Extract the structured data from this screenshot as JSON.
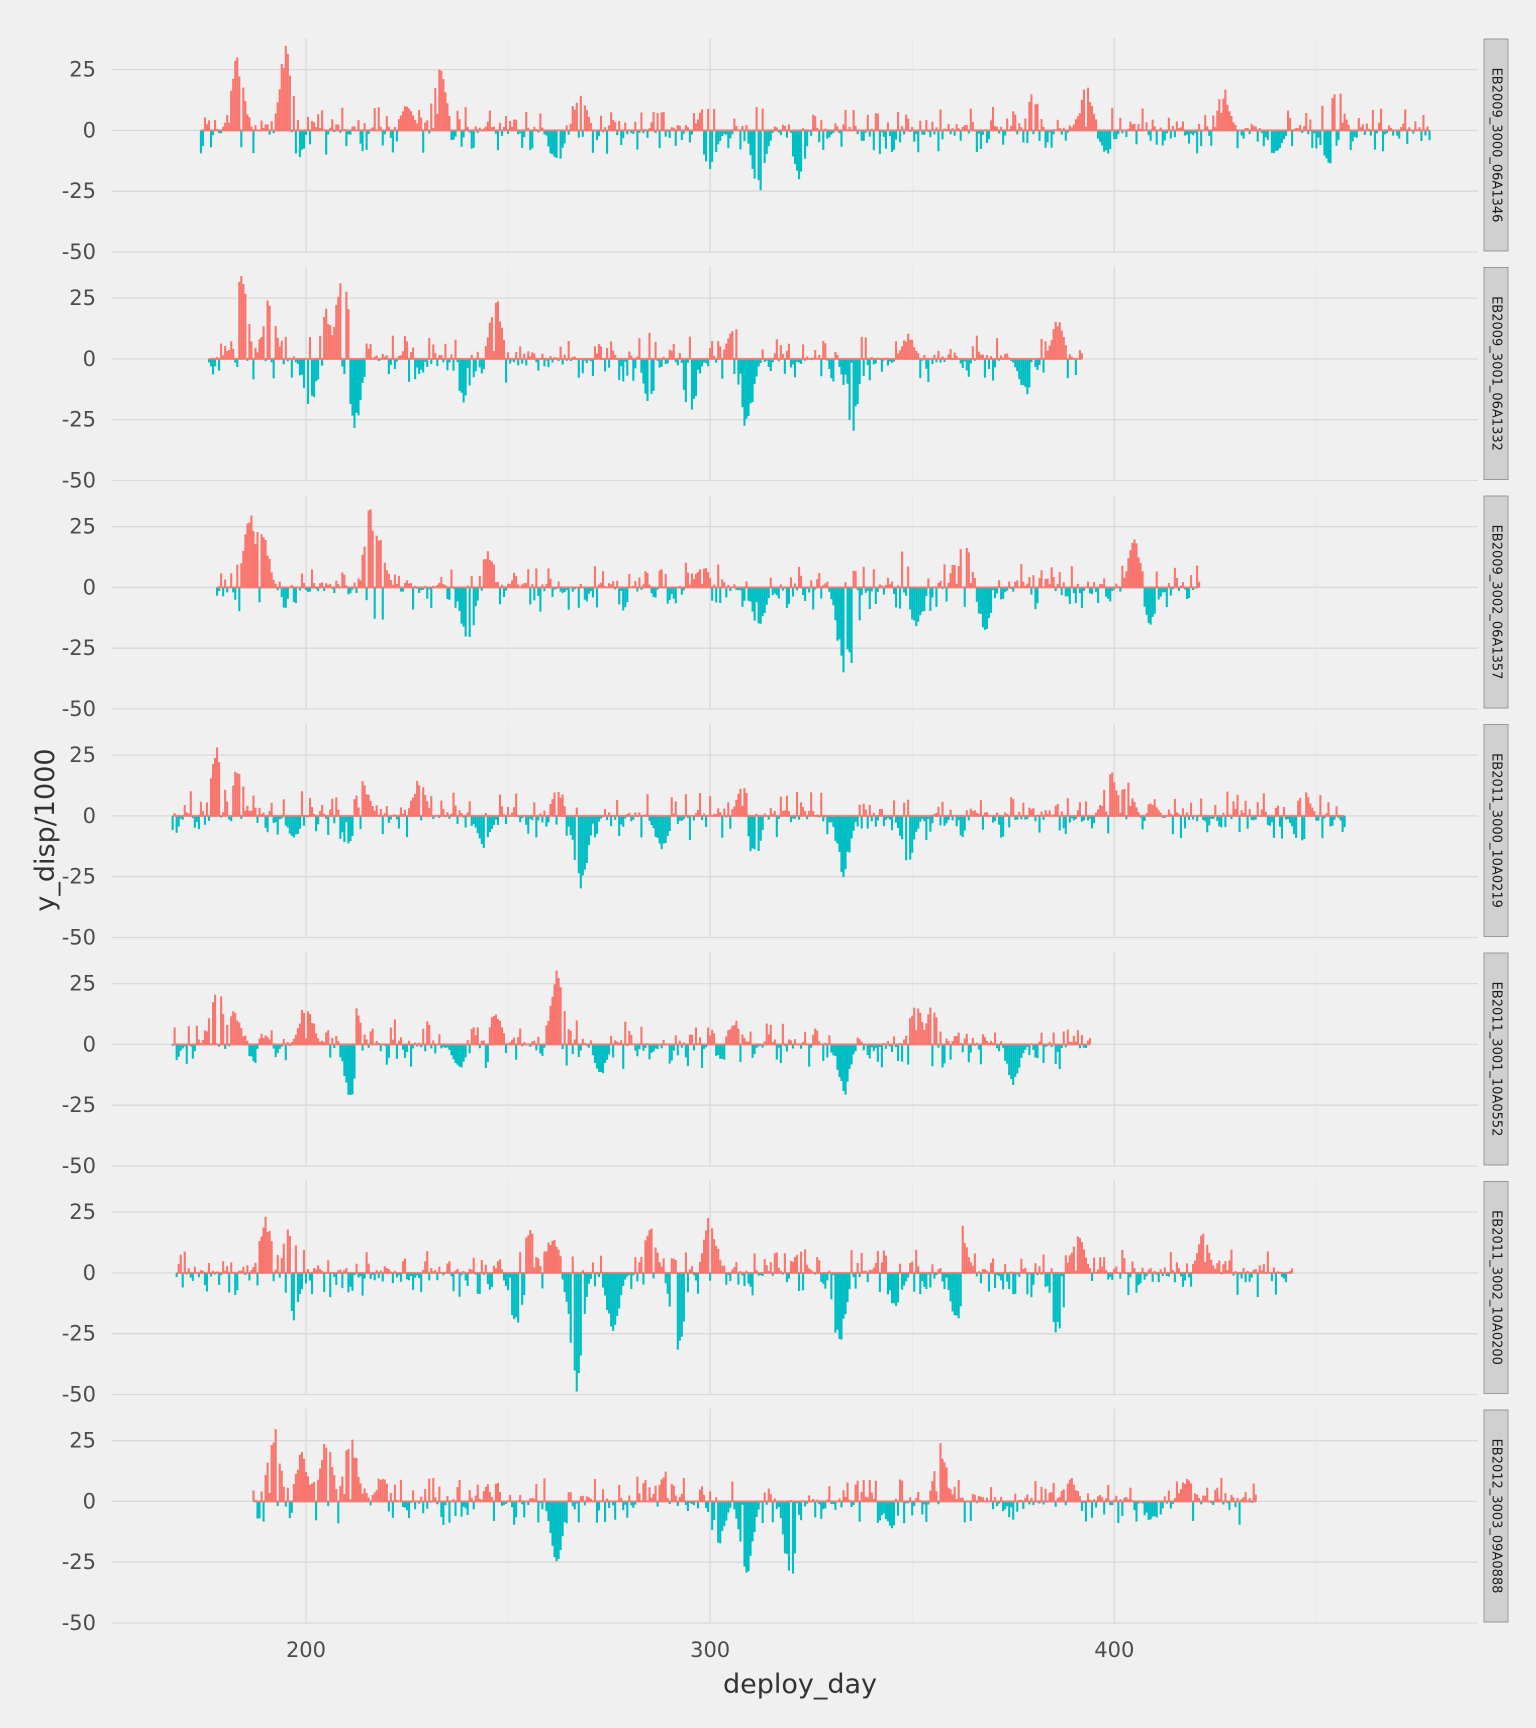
{
  "chart_data": {
    "type": "bar",
    "xlabel": "deploy_day",
    "ylabel": "y_disp/1000",
    "xlim": [
      152,
      490
    ],
    "ylim": [
      -50,
      38
    ],
    "x_ticks": [
      200,
      300,
      400
    ],
    "y_ticks": [
      25,
      0,
      -25,
      -50
    ],
    "x_tick_labels": [
      "200",
      "300",
      "400"
    ],
    "y_tick_labels": [
      "25",
      "0",
      "-25",
      "-50"
    ],
    "grid": true,
    "legend": "none",
    "colors": {
      "positive": "#f8766d",
      "negative": "#00bfc4",
      "background": "#f0f0f0"
    },
    "panels": [
      {
        "name": "EB2009_3000_06A1346",
        "x_start": 174,
        "x_end": 478,
        "peaks_pos": [
          [
            183,
            29
          ],
          [
            195,
            35
          ],
          [
            225,
            12
          ],
          [
            233,
            26
          ],
          [
            268,
            14
          ],
          [
            299,
            12
          ],
          [
            380,
            15
          ],
          [
            393,
            18
          ],
          [
            427,
            17
          ],
          [
            455,
            20
          ]
        ],
        "peaks_neg": [
          [
            198,
            -12
          ],
          [
            262,
            -15
          ],
          [
            300,
            -18
          ],
          [
            312,
            -25
          ],
          [
            322,
            -20
          ],
          [
            398,
            -10
          ],
          [
            440,
            -11
          ],
          [
            453,
            -15
          ]
        ]
      },
      {
        "name": "EB2009_3001_06A1332",
        "x_start": 176,
        "x_end": 392,
        "peaks_pos": [
          [
            184,
            34
          ],
          [
            191,
            26
          ],
          [
            205,
            20
          ],
          [
            209,
            38
          ],
          [
            247,
            24
          ],
          [
            285,
            14
          ],
          [
            306,
            15
          ],
          [
            349,
            10
          ],
          [
            386,
            16
          ]
        ],
        "peaks_neg": [
          [
            201,
            -20
          ],
          [
            212,
            -30
          ],
          [
            239,
            -18
          ],
          [
            285,
            -18
          ],
          [
            295,
            -25
          ],
          [
            309,
            -28
          ],
          [
            335,
            -30
          ],
          [
            378,
            -15
          ]
        ]
      },
      {
        "name": "EB2009_3002_06A1357",
        "x_start": 178,
        "x_end": 421,
        "peaks_pos": [
          [
            186,
            31
          ],
          [
            189,
            28
          ],
          [
            216,
            32
          ],
          [
            218,
            22
          ],
          [
            245,
            15
          ],
          [
            298,
            10
          ],
          [
            348,
            19
          ],
          [
            363,
            19
          ],
          [
            405,
            19
          ],
          [
            409,
            12
          ]
        ],
        "peaks_neg": [
          [
            218,
            -16
          ],
          [
            240,
            -25
          ],
          [
            312,
            -18
          ],
          [
            333,
            -35
          ],
          [
            335,
            -37
          ],
          [
            351,
            -18
          ],
          [
            368,
            -18
          ],
          [
            409,
            -15
          ]
        ]
      },
      {
        "name": "EB2011_3000_10A0219",
        "x_start": 167,
        "x_end": 457,
        "peaks_pos": [
          [
            178,
            28
          ],
          [
            183,
            20
          ],
          [
            214,
            17
          ],
          [
            228,
            15
          ],
          [
            262,
            10
          ],
          [
            308,
            12
          ],
          [
            399,
            20
          ],
          [
            403,
            15
          ],
          [
            447,
            10
          ]
        ],
        "peaks_neg": [
          [
            197,
            -10
          ],
          [
            210,
            -15
          ],
          [
            244,
            -13
          ],
          [
            268,
            -31
          ],
          [
            288,
            -15
          ],
          [
            311,
            -18
          ],
          [
            333,
            -24
          ],
          [
            349,
            -20
          ],
          [
            446,
            -13
          ]
        ]
      },
      {
        "name": "EB2011_3001_10A0552",
        "x_start": 167,
        "x_end": 394,
        "peaks_pos": [
          [
            178,
            26
          ],
          [
            182,
            16
          ],
          [
            200,
            17
          ],
          [
            212,
            18
          ],
          [
            247,
            14
          ],
          [
            262,
            30
          ],
          [
            263,
            20
          ],
          [
            306,
            10
          ],
          [
            351,
            17
          ],
          [
            355,
            17
          ]
        ],
        "peaks_neg": [
          [
            211,
            -22
          ],
          [
            238,
            -10
          ],
          [
            273,
            -12
          ],
          [
            303,
            -7
          ],
          [
            333,
            -21
          ],
          [
            351,
            -14
          ],
          [
            375,
            -16
          ]
        ]
      },
      {
        "name": "EB2011_3002_10A0200",
        "x_start": 168,
        "x_end": 444,
        "peaks_pos": [
          [
            190,
            22
          ],
          [
            196,
            19
          ],
          [
            255,
            20
          ],
          [
            261,
            16
          ],
          [
            285,
            20
          ],
          [
            300,
            23
          ],
          [
            322,
            9
          ],
          [
            362,
            20
          ],
          [
            391,
            17
          ],
          [
            422,
            16
          ]
        ],
        "peaks_neg": [
          [
            197,
            -19
          ],
          [
            252,
            -22
          ],
          [
            267,
            -48
          ],
          [
            276,
            -27
          ],
          [
            292,
            -36
          ],
          [
            332,
            -30
          ],
          [
            346,
            -15
          ],
          [
            361,
            -21
          ],
          [
            386,
            -25
          ]
        ]
      },
      {
        "name": "EB2012_3003_09A0888",
        "x_start": 187,
        "x_end": 435,
        "peaks_pos": [
          [
            192,
            30
          ],
          [
            199,
            20
          ],
          [
            205,
            26
          ],
          [
            211,
            30
          ],
          [
            219,
            10
          ],
          [
            246,
            10
          ],
          [
            289,
            12
          ],
          [
            357,
            23
          ],
          [
            389,
            10
          ],
          [
            418,
            10
          ]
        ],
        "peaks_neg": [
          [
            203,
            -8
          ],
          [
            262,
            -25
          ],
          [
            302,
            -20
          ],
          [
            309,
            -30
          ],
          [
            320,
            -34
          ],
          [
            345,
            -12
          ],
          [
            410,
            -8
          ]
        ]
      }
    ]
  }
}
